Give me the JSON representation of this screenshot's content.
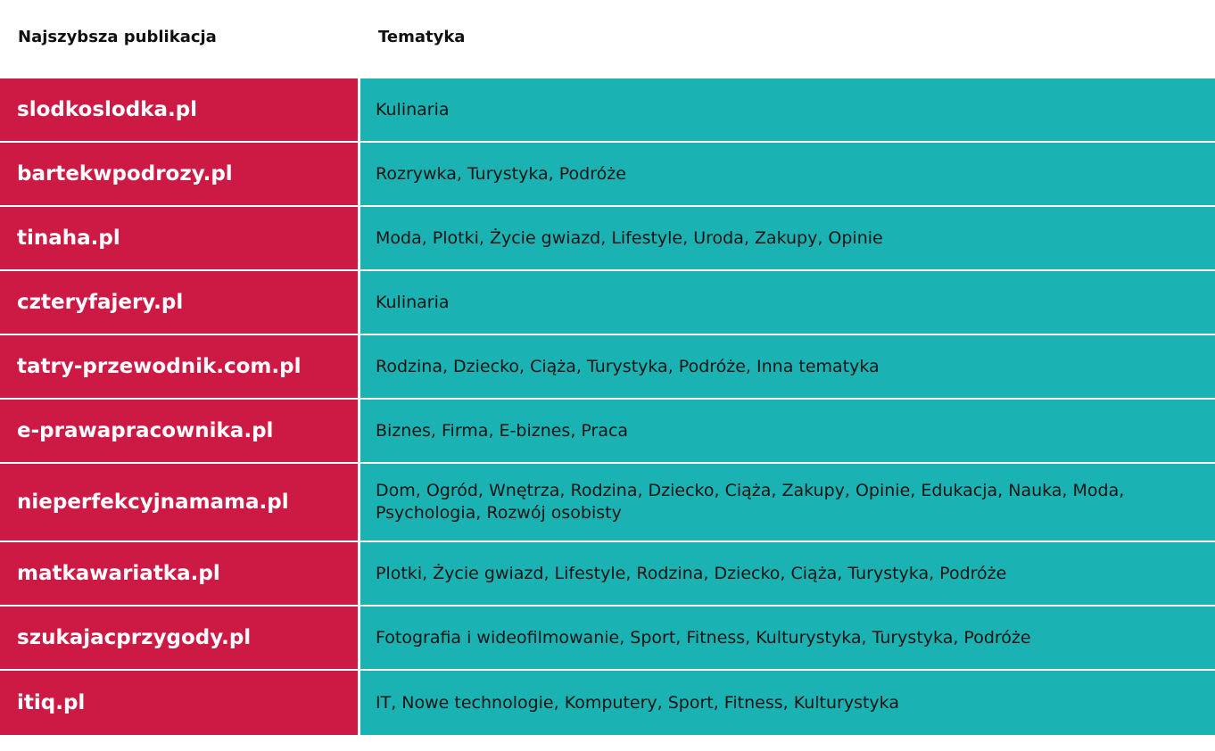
{
  "header": {
    "col_publication": "Najszybsza publikacja",
    "col_topics": "Tematyka"
  },
  "colors": {
    "site_bg": "#cc1a45",
    "topics_bg": "#1ab2b2"
  },
  "rows": [
    {
      "site": "slodkoslodka.pl",
      "topics": "Kulinaria"
    },
    {
      "site": "bartekwpodrozy.pl",
      "topics": "Rozrywka, Turystyka, Podróże"
    },
    {
      "site": "tinaha.pl",
      "topics": "Moda, Plotki, Życie gwiazd, Lifestyle, Uroda, Zakupy, Opinie"
    },
    {
      "site": "czteryfajery.pl",
      "topics": "Kulinaria"
    },
    {
      "site": "tatry-przewodnik.com.pl",
      "topics": "Rodzina, Dziecko, Ciąża, Turystyka, Podróże, Inna tematyka"
    },
    {
      "site": "e-prawapracownika.pl",
      "topics": "Biznes, Firma, E-biznes, Praca"
    },
    {
      "site": "nieperfekcyjnamama.pl",
      "topics": "Dom, Ogród, Wnętrza, Rodzina, Dziecko, Ciąża, Zakupy, Opinie, Edukacja, Nauka, Moda, Psychologia, Rozwój osobisty"
    },
    {
      "site": "matkawariatka.pl",
      "topics": "Plotki, Życie gwiazd, Lifestyle, Rodzina, Dziecko, Ciąża, Turystyka, Podróże"
    },
    {
      "site": "szukajacprzygody.pl",
      "topics": "Fotografia i wideofilmowanie, Sport, Fitness, Kulturystyka, Turystyka, Podróże"
    },
    {
      "site": "itiq.pl",
      "topics": "IT, Nowe technologie, Komputery, Sport, Fitness, Kulturystyka"
    }
  ]
}
